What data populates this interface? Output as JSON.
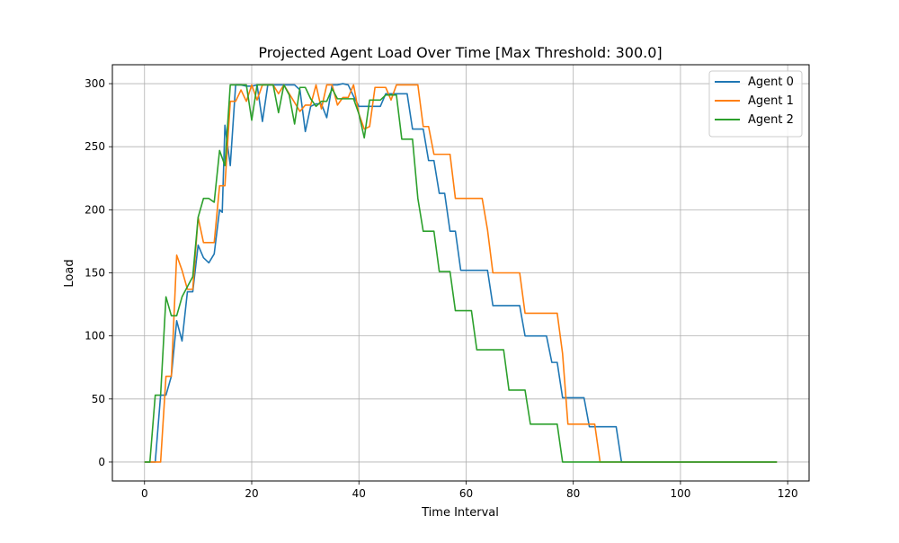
{
  "chart_data": {
    "type": "line",
    "title": "Projected Agent Load Over Time [Max Threshold: 300.0]",
    "xlabel": "Time Interval",
    "ylabel": "Load",
    "xlim": [
      -6,
      124
    ],
    "ylim": [
      -15,
      315
    ],
    "xticks": [
      0,
      20,
      40,
      60,
      80,
      100,
      120
    ],
    "yticks": [
      0,
      50,
      100,
      150,
      200,
      250,
      300
    ],
    "grid": true,
    "legend_position": "top-right",
    "series": [
      {
        "name": "Agent 0",
        "color": "#1f77b4",
        "points": [
          [
            0,
            0
          ],
          [
            2,
            0
          ],
          [
            3,
            53
          ],
          [
            4,
            53
          ],
          [
            5,
            68
          ],
          [
            6,
            112
          ],
          [
            7,
            96
          ],
          [
            8,
            135
          ],
          [
            9,
            135
          ],
          [
            10,
            172
          ],
          [
            11,
            162
          ],
          [
            12,
            158
          ],
          [
            13,
            165
          ],
          [
            14,
            200
          ],
          [
            14.5,
            198
          ],
          [
            15,
            267
          ],
          [
            16,
            235
          ],
          [
            17,
            299
          ],
          [
            18,
            299
          ],
          [
            19,
            298
          ],
          [
            20,
            298
          ],
          [
            21,
            299
          ],
          [
            22,
            270
          ],
          [
            23,
            299
          ],
          [
            24,
            299
          ],
          [
            25,
            299
          ],
          [
            26,
            299
          ],
          [
            27,
            299
          ],
          [
            28,
            299
          ],
          [
            29,
            295
          ],
          [
            30,
            262
          ],
          [
            31,
            282
          ],
          [
            32,
            284
          ],
          [
            33,
            284
          ],
          [
            34,
            273
          ],
          [
            35,
            299
          ],
          [
            36,
            299
          ],
          [
            37,
            300
          ],
          [
            38,
            299
          ],
          [
            39,
            290
          ],
          [
            40,
            282
          ],
          [
            41,
            282
          ],
          [
            42,
            282
          ],
          [
            43,
            282
          ],
          [
            44,
            282
          ],
          [
            45,
            292
          ],
          [
            46,
            292
          ],
          [
            47,
            292
          ],
          [
            48,
            292
          ],
          [
            49,
            292
          ],
          [
            50,
            264
          ],
          [
            51,
            264
          ],
          [
            52,
            264
          ],
          [
            53,
            239
          ],
          [
            54,
            239
          ],
          [
            55,
            213
          ],
          [
            56,
            213
          ],
          [
            57,
            183
          ],
          [
            58,
            183
          ],
          [
            59,
            152
          ],
          [
            60,
            152
          ],
          [
            61,
            152
          ],
          [
            62,
            152
          ],
          [
            63,
            152
          ],
          [
            64,
            152
          ],
          [
            65,
            124
          ],
          [
            66,
            124
          ],
          [
            67,
            124
          ],
          [
            68,
            124
          ],
          [
            69,
            124
          ],
          [
            70,
            124
          ],
          [
            71,
            100
          ],
          [
            72,
            100
          ],
          [
            73,
            100
          ],
          [
            74,
            100
          ],
          [
            75,
            100
          ],
          [
            76,
            79
          ],
          [
            77,
            79
          ],
          [
            78,
            51
          ],
          [
            79,
            51
          ],
          [
            80,
            51
          ],
          [
            81,
            51
          ],
          [
            82,
            51
          ],
          [
            83,
            28
          ],
          [
            84,
            28
          ],
          [
            85,
            28
          ],
          [
            86,
            28
          ],
          [
            87,
            28
          ],
          [
            88,
            28
          ],
          [
            89,
            0
          ],
          [
            100,
            0
          ],
          [
            118,
            0
          ]
        ]
      },
      {
        "name": "Agent 1",
        "color": "#ff7f0e",
        "points": [
          [
            0,
            0
          ],
          [
            1,
            0
          ],
          [
            2,
            0
          ],
          [
            3,
            0
          ],
          [
            4,
            68
          ],
          [
            5,
            68
          ],
          [
            6,
            164
          ],
          [
            7,
            152
          ],
          [
            8,
            137
          ],
          [
            9,
            137
          ],
          [
            10,
            194
          ],
          [
            11,
            174
          ],
          [
            12,
            174
          ],
          [
            13,
            174
          ],
          [
            14,
            219
          ],
          [
            15,
            219
          ],
          [
            16,
            286
          ],
          [
            17,
            286
          ],
          [
            18,
            295
          ],
          [
            19,
            286
          ],
          [
            20,
            299
          ],
          [
            21,
            287
          ],
          [
            22,
            299
          ],
          [
            23,
            299
          ],
          [
            24,
            299
          ],
          [
            25,
            292
          ],
          [
            26,
            299
          ],
          [
            27,
            292
          ],
          [
            28,
            285
          ],
          [
            29,
            278
          ],
          [
            30,
            283
          ],
          [
            31,
            283
          ],
          [
            32,
            299
          ],
          [
            33,
            280
          ],
          [
            34,
            299
          ],
          [
            35,
            299
          ],
          [
            36,
            283
          ],
          [
            37,
            289
          ],
          [
            38,
            289
          ],
          [
            39,
            299
          ],
          [
            40,
            276
          ],
          [
            41,
            264
          ],
          [
            42,
            266
          ],
          [
            43,
            297
          ],
          [
            44,
            297
          ],
          [
            45,
            297
          ],
          [
            46,
            287
          ],
          [
            47,
            299
          ],
          [
            48,
            299
          ],
          [
            49,
            299
          ],
          [
            50,
            299
          ],
          [
            51,
            299
          ],
          [
            52,
            266
          ],
          [
            53,
            266
          ],
          [
            54,
            244
          ],
          [
            55,
            244
          ],
          [
            56,
            244
          ],
          [
            57,
            244
          ],
          [
            58,
            209
          ],
          [
            59,
            209
          ],
          [
            60,
            209
          ],
          [
            61,
            209
          ],
          [
            62,
            209
          ],
          [
            63,
            209
          ],
          [
            64,
            184
          ],
          [
            65,
            150
          ],
          [
            66,
            150
          ],
          [
            67,
            150
          ],
          [
            68,
            150
          ],
          [
            69,
            150
          ],
          [
            70,
            150
          ],
          [
            71,
            118
          ],
          [
            72,
            118
          ],
          [
            73,
            118
          ],
          [
            74,
            118
          ],
          [
            75,
            118
          ],
          [
            76,
            118
          ],
          [
            77,
            118
          ],
          [
            78,
            86
          ],
          [
            79,
            30
          ],
          [
            80,
            30
          ],
          [
            81,
            30
          ],
          [
            82,
            30
          ],
          [
            83,
            30
          ],
          [
            84,
            30
          ],
          [
            85,
            0
          ],
          [
            100,
            0
          ],
          [
            118,
            0
          ]
        ]
      },
      {
        "name": "Agent 2",
        "color": "#2ca02c",
        "points": [
          [
            0,
            0
          ],
          [
            1,
            0
          ],
          [
            2,
            53
          ],
          [
            3,
            53
          ],
          [
            4,
            131
          ],
          [
            5,
            116
          ],
          [
            6,
            116
          ],
          [
            7,
            131
          ],
          [
            8,
            139
          ],
          [
            9,
            147
          ],
          [
            10,
            194
          ],
          [
            11,
            209
          ],
          [
            12,
            209
          ],
          [
            13,
            206
          ],
          [
            14,
            247
          ],
          [
            15,
            235
          ],
          [
            16,
            299
          ],
          [
            17,
            299
          ],
          [
            18,
            299
          ],
          [
            19,
            299
          ],
          [
            20,
            271
          ],
          [
            21,
            299
          ],
          [
            22,
            299
          ],
          [
            23,
            299
          ],
          [
            24,
            299
          ],
          [
            25,
            277
          ],
          [
            26,
            299
          ],
          [
            27,
            291
          ],
          [
            28,
            268
          ],
          [
            29,
            297
          ],
          [
            30,
            297
          ],
          [
            31,
            288
          ],
          [
            32,
            282
          ],
          [
            33,
            286
          ],
          [
            34,
            286
          ],
          [
            35,
            296
          ],
          [
            36,
            288
          ],
          [
            37,
            288
          ],
          [
            38,
            288
          ],
          [
            39,
            288
          ],
          [
            40,
            276
          ],
          [
            41,
            257
          ],
          [
            42,
            287
          ],
          [
            43,
            287
          ],
          [
            44,
            287
          ],
          [
            45,
            291
          ],
          [
            46,
            291
          ],
          [
            47,
            291
          ],
          [
            48,
            256
          ],
          [
            49,
            256
          ],
          [
            50,
            256
          ],
          [
            51,
            209
          ],
          [
            52,
            183
          ],
          [
            53,
            183
          ],
          [
            54,
            183
          ],
          [
            55,
            151
          ],
          [
            56,
            151
          ],
          [
            57,
            151
          ],
          [
            58,
            120
          ],
          [
            59,
            120
          ],
          [
            60,
            120
          ],
          [
            61,
            120
          ],
          [
            62,
            89
          ],
          [
            63,
            89
          ],
          [
            64,
            89
          ],
          [
            65,
            89
          ],
          [
            66,
            89
          ],
          [
            67,
            89
          ],
          [
            68,
            57
          ],
          [
            69,
            57
          ],
          [
            70,
            57
          ],
          [
            71,
            57
          ],
          [
            72,
            30
          ],
          [
            73,
            30
          ],
          [
            74,
            30
          ],
          [
            75,
            30
          ],
          [
            76,
            30
          ],
          [
            77,
            30
          ],
          [
            78,
            0
          ],
          [
            90,
            0
          ],
          [
            100,
            0
          ],
          [
            118,
            0
          ]
        ]
      }
    ]
  }
}
